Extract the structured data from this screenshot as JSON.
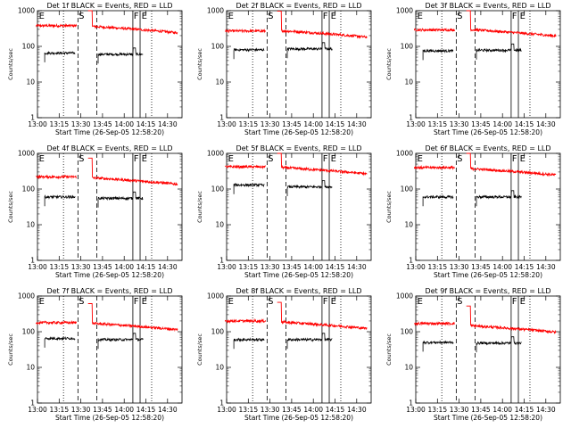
{
  "chart_data": [
    {
      "type": "line",
      "title": "Det 1f BLACK = Events, RED = LLD",
      "xlabel": "Start Time (26-Sep-05 12:58:20)",
      "ylabel": "Counts/sec",
      "x_ticks": [
        "13:00",
        "13:15",
        "13:30",
        "13:45",
        "14:00",
        "14:15",
        "14:30"
      ],
      "y_ticks": [
        "1",
        "10",
        "100",
        "1000"
      ],
      "y_scale": "log",
      "ylim": [
        1,
        1000
      ],
      "markers": [
        "E",
        "S",
        "F",
        "E"
      ],
      "series": [
        {
          "color": "#ff0000",
          "segments": [
            {
              "start": "12:59",
              "end": "13:27",
              "value": 380
            },
            {
              "start": "13:35",
              "end": "14:37",
              "value": 370
            }
          ]
        },
        {
          "color": "#000000",
          "segments": [
            {
              "start": "13:05",
              "end": "13:26",
              "value": 65
            },
            {
              "start": "13:42",
              "end": "14:13",
              "value": 60
            }
          ]
        }
      ]
    },
    {
      "type": "line",
      "title": "Det 2f BLACK = Events, RED = LLD",
      "xlabel": "Start Time (26-Sep-05 12:58:20)",
      "ylabel": "Counts/sec",
      "x_ticks": [
        "13:00",
        "13:15",
        "13:30",
        "13:45",
        "14:00",
        "14:15",
        "14:30"
      ],
      "y_ticks": [
        "1",
        "10",
        "100",
        "1000"
      ],
      "y_scale": "log",
      "ylim": [
        1,
        1000
      ],
      "markers": [
        "E",
        "S",
        "F",
        "E"
      ],
      "series": [
        {
          "color": "#ff0000",
          "segments": [
            {
              "start": "12:59",
              "end": "13:27",
              "value": 270
            },
            {
              "start": "13:35",
              "end": "14:37",
              "value": 280
            }
          ]
        },
        {
          "color": "#000000",
          "segments": [
            {
              "start": "13:05",
              "end": "13:26",
              "value": 80
            },
            {
              "start": "13:42",
              "end": "14:13",
              "value": 85
            }
          ]
        }
      ]
    },
    {
      "type": "line",
      "title": "Det 3f BLACK = Events, RED = LLD",
      "xlabel": "Start Time (26-Sep-05 12:58:20)",
      "ylabel": "Counts/sec",
      "x_ticks": [
        "13:00",
        "13:15",
        "13:30",
        "13:45",
        "14:00",
        "14:15",
        "14:30"
      ],
      "y_ticks": [
        "1",
        "10",
        "100",
        "1000"
      ],
      "y_scale": "log",
      "ylim": [
        1,
        1000
      ],
      "markers": [
        "E",
        "S",
        "F",
        "E"
      ],
      "series": [
        {
          "color": "#ff0000",
          "segments": [
            {
              "start": "12:59",
              "end": "13:27",
              "value": 290
            },
            {
              "start": "13:35",
              "end": "14:37",
              "value": 300
            }
          ]
        },
        {
          "color": "#000000",
          "segments": [
            {
              "start": "13:05",
              "end": "13:26",
              "value": 75
            },
            {
              "start": "13:42",
              "end": "14:13",
              "value": 78
            }
          ]
        }
      ]
    },
    {
      "type": "line",
      "title": "Det 4f BLACK = Events, RED = LLD",
      "xlabel": "Start Time (26-Sep-05 12:58:20)",
      "ylabel": "Counts/sec",
      "x_ticks": [
        "13:00",
        "13:15",
        "13:30",
        "13:45",
        "14:00",
        "14:15",
        "14:30"
      ],
      "y_ticks": [
        "1",
        "10",
        "100",
        "1000"
      ],
      "y_scale": "log",
      "ylim": [
        1,
        1000
      ],
      "markers": [
        "E",
        "S",
        "F",
        "E"
      ],
      "series": [
        {
          "color": "#ff0000",
          "segments": [
            {
              "start": "12:59",
              "end": "13:27",
              "value": 220
            },
            {
              "start": "13:35",
              "end": "14:37",
              "value": 210
            }
          ]
        },
        {
          "color": "#000000",
          "segments": [
            {
              "start": "13:05",
              "end": "13:26",
              "value": 60
            },
            {
              "start": "13:42",
              "end": "14:13",
              "value": 55
            }
          ]
        }
      ]
    },
    {
      "type": "line",
      "title": "Det 5f BLACK = Events, RED = LLD",
      "xlabel": "Start Time (26-Sep-05 12:58:20)",
      "ylabel": "Counts/sec",
      "x_ticks": [
        "13:00",
        "13:15",
        "13:30",
        "13:45",
        "14:00",
        "14:15",
        "14:30"
      ],
      "y_ticks": [
        "1",
        "10",
        "100",
        "1000"
      ],
      "y_scale": "log",
      "ylim": [
        1,
        1000
      ],
      "markers": [
        "E",
        "S",
        "F",
        "E"
      ],
      "series": [
        {
          "color": "#ff0000",
          "segments": [
            {
              "start": "12:59",
              "end": "13:27",
              "value": 420
            },
            {
              "start": "13:35",
              "end": "14:37",
              "value": 410
            }
          ]
        },
        {
          "color": "#000000",
          "segments": [
            {
              "start": "13:05",
              "end": "13:26",
              "value": 130
            },
            {
              "start": "13:42",
              "end": "14:13",
              "value": 115
            }
          ]
        }
      ]
    },
    {
      "type": "line",
      "title": "Det 6f BLACK = Events, RED = LLD",
      "xlabel": "Start Time (26-Sep-05 12:58:20)",
      "ylabel": "Counts/sec",
      "x_ticks": [
        "13:00",
        "13:15",
        "13:30",
        "13:45",
        "14:00",
        "14:15",
        "14:30"
      ],
      "y_ticks": [
        "1",
        "10",
        "100",
        "1000"
      ],
      "y_scale": "log",
      "ylim": [
        1,
        1000
      ],
      "markers": [
        "E",
        "S",
        "F",
        "E"
      ],
      "series": [
        {
          "color": "#ff0000",
          "segments": [
            {
              "start": "12:59",
              "end": "13:27",
              "value": 400
            },
            {
              "start": "13:35",
              "end": "14:37",
              "value": 380
            }
          ]
        },
        {
          "color": "#000000",
          "segments": [
            {
              "start": "13:05",
              "end": "13:26",
              "value": 60
            },
            {
              "start": "13:42",
              "end": "14:13",
              "value": 60
            }
          ]
        }
      ]
    },
    {
      "type": "line",
      "title": "Det 7f BLACK = Events, RED = LLD",
      "xlabel": "Start Time (26-Sep-05 12:58:20)",
      "ylabel": "Counts/sec",
      "x_ticks": [
        "13:00",
        "13:15",
        "13:30",
        "13:45",
        "14:00",
        "14:15",
        "14:30"
      ],
      "y_ticks": [
        "1",
        "10",
        "100",
        "1000"
      ],
      "y_scale": "log",
      "ylim": [
        1,
        1000
      ],
      "markers": [
        "E",
        "S",
        "F",
        "E"
      ],
      "series": [
        {
          "color": "#ff0000",
          "segments": [
            {
              "start": "12:59",
              "end": "13:27",
              "value": 180
            },
            {
              "start": "13:35",
              "end": "14:37",
              "value": 175
            }
          ]
        },
        {
          "color": "#000000",
          "segments": [
            {
              "start": "13:05",
              "end": "13:26",
              "value": 65
            },
            {
              "start": "13:42",
              "end": "14:13",
              "value": 60
            }
          ]
        }
      ]
    },
    {
      "type": "line",
      "title": "Det 8f BLACK = Events, RED = LLD",
      "xlabel": "Start Time (26-Sep-05 12:58:20)",
      "ylabel": "Counts/sec",
      "x_ticks": [
        "13:00",
        "13:15",
        "13:30",
        "13:45",
        "14:00",
        "14:15",
        "14:30"
      ],
      "y_ticks": [
        "1",
        "10",
        "100",
        "1000"
      ],
      "y_scale": "log",
      "ylim": [
        1,
        1000
      ],
      "markers": [
        "E",
        "S",
        "F",
        "E"
      ],
      "series": [
        {
          "color": "#ff0000",
          "segments": [
            {
              "start": "12:59",
              "end": "13:27",
              "value": 200
            },
            {
              "start": "13:35",
              "end": "14:37",
              "value": 190
            }
          ]
        },
        {
          "color": "#000000",
          "segments": [
            {
              "start": "13:05",
              "end": "13:26",
              "value": 60
            },
            {
              "start": "13:42",
              "end": "14:13",
              "value": 60
            }
          ]
        }
      ]
    },
    {
      "type": "line",
      "title": "Det 9f BLACK = Events, RED = LLD",
      "xlabel": "Start Time (26-Sep-05 12:58:20)",
      "ylabel": "Counts/sec",
      "x_ticks": [
        "13:00",
        "13:15",
        "13:30",
        "13:45",
        "14:00",
        "14:15",
        "14:30"
      ],
      "y_ticks": [
        "1",
        "10",
        "100",
        "1000"
      ],
      "y_scale": "log",
      "ylim": [
        1,
        1000
      ],
      "markers": [
        "E",
        "S",
        "F",
        "E"
      ],
      "series": [
        {
          "color": "#ff0000",
          "segments": [
            {
              "start": "12:59",
              "end": "13:27",
              "value": 170
            },
            {
              "start": "13:35",
              "end": "14:37",
              "value": 150
            }
          ]
        },
        {
          "color": "#000000",
          "segments": [
            {
              "start": "13:05",
              "end": "13:26",
              "value": 50
            },
            {
              "start": "13:42",
              "end": "14:13",
              "value": 48
            }
          ]
        }
      ]
    }
  ]
}
